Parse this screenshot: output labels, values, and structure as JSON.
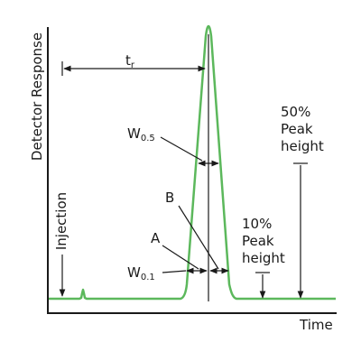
{
  "axes": {
    "y_label": "Detector Response",
    "x_label": "Time"
  },
  "annotations": {
    "injection": "Injection",
    "retention_time": {
      "main": "t",
      "sub": "r"
    },
    "w05": {
      "main": "W",
      "sub": "0.5"
    },
    "w01": {
      "main": "W",
      "sub": "0.1"
    },
    "point_a": "A",
    "point_b": "B",
    "peak50": [
      "50%",
      "Peak",
      "height"
    ],
    "peak10": [
      "10%",
      "Peak",
      "height"
    ]
  },
  "colors": {
    "peak": "#5cb85c",
    "ink": "#1a1a1a"
  }
}
